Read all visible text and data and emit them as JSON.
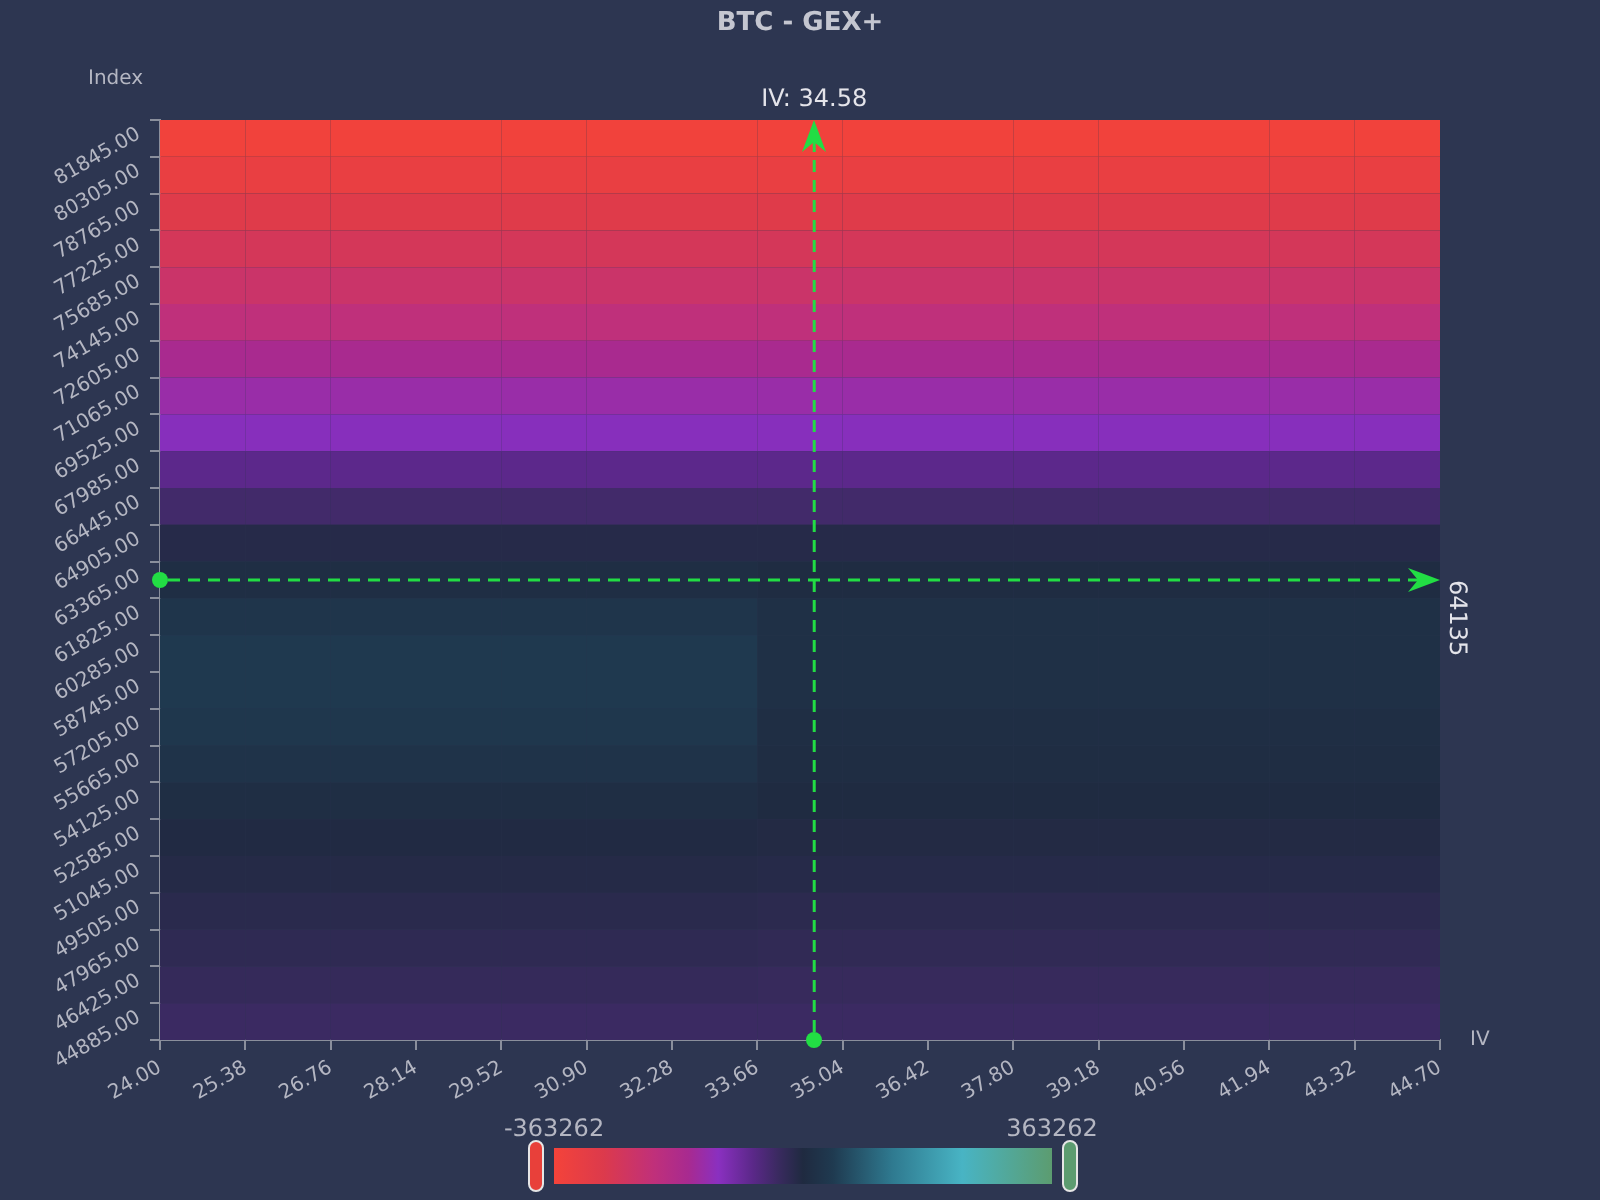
{
  "chart_data": {
    "type": "heatmap",
    "title": "BTC - GEX+",
    "xlabel": "IV",
    "ylabel": "Index",
    "xlim": [
      24,
      44.7
    ],
    "xticks": [
      {
        "value": 24,
        "label": "24.00"
      },
      25.38,
      26.76,
      28.14,
      29.52,
      {
        "value": 30.9,
        "label": "30.90"
      },
      32.28,
      33.66,
      35.04,
      36.42,
      {
        "value": 37.8,
        "label": "37.80"
      },
      39.18,
      40.56,
      41.94,
      43.32,
      {
        "value": 44.7,
        "label": "44.70"
      }
    ],
    "ylim": [
      44885,
      83385
    ],
    "yticks": [
      {
        "value": 44885,
        "label": "44885.00"
      },
      {
        "value": 46425,
        "label": "46425.00"
      },
      {
        "value": 47965,
        "label": "47965.00"
      },
      {
        "value": 49505,
        "label": "49505.00"
      },
      {
        "value": 51045,
        "label": "51045.00"
      },
      {
        "value": 52585,
        "label": "52585.00"
      },
      {
        "value": 54125,
        "label": "54125.00"
      },
      {
        "value": 55665,
        "label": "55665.00"
      },
      {
        "value": 57205,
        "label": "57205.00"
      },
      {
        "value": 58745,
        "label": "58745.00"
      },
      {
        "value": 60285,
        "label": "60285.00"
      },
      {
        "value": 61825,
        "label": "61825.00"
      },
      {
        "value": 63365,
        "label": "63365.00"
      },
      {
        "value": 64905,
        "label": "64905.00"
      },
      {
        "value": 66445,
        "label": "66445.00"
      },
      {
        "value": 67985,
        "label": "67985.00"
      },
      {
        "value": 69525,
        "label": "69525.00"
      },
      {
        "value": 71065,
        "label": "71065.00"
      },
      {
        "value": 72605,
        "label": "72605.00"
      },
      {
        "value": 74145,
        "label": "74145.00"
      },
      {
        "value": 75685,
        "label": "75685.00"
      },
      {
        "value": 77225,
        "label": "77225.00"
      },
      {
        "value": 78765,
        "label": "78765.00"
      },
      {
        "value": 80305,
        "label": "80305.00"
      },
      {
        "value": 81845,
        "label": "81845.00"
      },
      {
        "value": 83385,
        "label": null
      }
    ],
    "clim": [
      -363262,
      363262
    ],
    "cticks": [
      -363262,
      363262
    ],
    "cells": [
      [
        -355000,
        -355000,
        -355000,
        -355000,
        -355000,
        -355000,
        -355000,
        -355000,
        -355000,
        -355000,
        -355000,
        -355000,
        -355000,
        -355000,
        -355000
      ],
      [
        -330000,
        -330000,
        -330000,
        -330000,
        -330000,
        -330000,
        -330000,
        -330000,
        -330000,
        -330000,
        -330000,
        -330000,
        -330000,
        -330000,
        -330000
      ],
      [
        -300000,
        -300000,
        -300000,
        -300000,
        -300000,
        -300000,
        -300000,
        -300000,
        -300000,
        -300000,
        -300000,
        -300000,
        -300000,
        -300000,
        -300000
      ],
      [
        -270000,
        -270000,
        -270000,
        -270000,
        -270000,
        -270000,
        -270000,
        -270000,
        -270000,
        -270000,
        -270000,
        -270000,
        -270000,
        -270000,
        -270000
      ],
      [
        -245000,
        -245000,
        -245000,
        -245000,
        -245000,
        -245000,
        -245000,
        -245000,
        -245000,
        -245000,
        -245000,
        -245000,
        -245000,
        -245000,
        -245000
      ],
      [
        -215000,
        -215000,
        -215000,
        -215000,
        -215000,
        -215000,
        -215000,
        -215000,
        -215000,
        -215000,
        -215000,
        -215000,
        -215000,
        -215000,
        -215000
      ],
      [
        -170000,
        -170000,
        -170000,
        -170000,
        -170000,
        -170000,
        -170000,
        -170000,
        -170000,
        -170000,
        -170000,
        -170000,
        -170000,
        -170000,
        -170000
      ],
      [
        -145000,
        -145000,
        -145000,
        -145000,
        -145000,
        -145000,
        -145000,
        -145000,
        -145000,
        -145000,
        -145000,
        -145000,
        -145000,
        -145000,
        -145000
      ],
      [
        -120000,
        -120000,
        -120000,
        -120000,
        -120000,
        -120000,
        -120000,
        -120000,
        -120000,
        -120000,
        -120000,
        -120000,
        -120000,
        -120000,
        -120000
      ],
      [
        -75000,
        -75000,
        -75000,
        -75000,
        -75000,
        -75000,
        -75000,
        -75000,
        -75000,
        -75000,
        -75000,
        -75000,
        -75000,
        -75000,
        -75000
      ],
      [
        -45000,
        -45000,
        -45000,
        -45000,
        -45000,
        -45000,
        -45000,
        -45000,
        -45000,
        -45000,
        -45000,
        -45000,
        -45000,
        -45000,
        -45000
      ],
      [
        -10000,
        -10000,
        -10000,
        -10000,
        -10000,
        -10000,
        -10000,
        -10000,
        -10000,
        -10000,
        -10000,
        -10000,
        -10000,
        -10000,
        -10000
      ],
      [
        10000,
        10000,
        10000,
        10000,
        10000,
        10000,
        10000,
        5000,
        5000,
        5000,
        5000,
        5000,
        5000,
        5000,
        5000
      ],
      [
        30000,
        30000,
        30000,
        30000,
        30000,
        30000,
        30000,
        15000,
        15000,
        15000,
        15000,
        15000,
        15000,
        15000,
        15000
      ],
      [
        40000,
        40000,
        40000,
        40000,
        40000,
        40000,
        40000,
        15000,
        15000,
        15000,
        15000,
        15000,
        15000,
        15000,
        15000
      ],
      [
        40000,
        40000,
        40000,
        40000,
        40000,
        40000,
        40000,
        15000,
        15000,
        15000,
        15000,
        15000,
        15000,
        15000,
        15000
      ],
      [
        35000,
        35000,
        35000,
        35000,
        35000,
        35000,
        35000,
        12000,
        12000,
        12000,
        12000,
        12000,
        12000,
        12000,
        12000
      ],
      [
        25000,
        25000,
        25000,
        25000,
        25000,
        25000,
        25000,
        8000,
        8000,
        8000,
        8000,
        8000,
        8000,
        8000,
        8000
      ],
      [
        10000,
        10000,
        10000,
        10000,
        10000,
        10000,
        10000,
        3000,
        3000,
        3000,
        3000,
        3000,
        3000,
        3000,
        3000
      ],
      [
        -3000,
        -3000,
        -3000,
        -3000,
        -3000,
        -3000,
        -3000,
        -5000,
        -5000,
        -5000,
        -5000,
        -5000,
        -5000,
        -5000,
        -5000
      ],
      [
        -8000,
        -8000,
        -8000,
        -8000,
        -8000,
        -8000,
        -8000,
        -10000,
        -10000,
        -10000,
        -10000,
        -10000,
        -10000,
        -10000,
        -10000
      ],
      [
        -15000,
        -15000,
        -15000,
        -15000,
        -15000,
        -15000,
        -15000,
        -17000,
        -17000,
        -17000,
        -17000,
        -17000,
        -17000,
        -17000,
        -17000
      ],
      [
        -22000,
        -22000,
        -22000,
        -22000,
        -22000,
        -22000,
        -22000,
        -24000,
        -24000,
        -24000,
        -24000,
        -24000,
        -24000,
        -24000,
        -24000
      ],
      [
        -30000,
        -30000,
        -30000,
        -30000,
        -30000,
        -30000,
        -30000,
        -32000,
        -32000,
        -32000,
        -32000,
        -32000,
        -32000,
        -32000,
        -32000
      ],
      [
        -38000,
        -38000,
        -38000,
        -38000,
        -38000,
        -38000,
        -38000,
        -38000,
        -38000,
        -38000,
        -38000,
        -38000,
        -38000,
        -38000,
        -38000
      ]
    ],
    "ref_lines": [
      {
        "axis": "x",
        "value": 34.58,
        "label": "IV: 34.58",
        "color": "#22dd44",
        "line_style": "dashed"
      },
      {
        "axis": "y",
        "value": 64135,
        "label": "64135",
        "color": "#22dd44",
        "line_style": "dashed"
      }
    ]
  }
}
